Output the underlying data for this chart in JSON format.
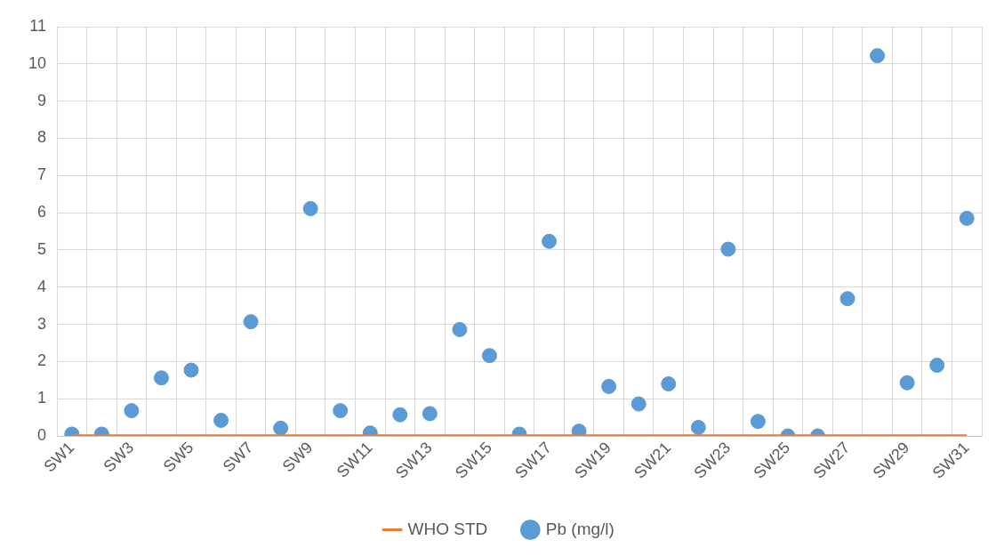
{
  "chart_data": {
    "type": "scatter",
    "categories": [
      "SW1",
      null,
      "SW3",
      null,
      "SW5",
      null,
      "SW7",
      null,
      "SW9",
      null,
      "SW11",
      null,
      "SW13",
      null,
      "SW15",
      null,
      "SW17",
      null,
      "SW19",
      null,
      "SW21",
      null,
      "SW23",
      null,
      "SW25",
      null,
      "SW27",
      null,
      "SW29",
      null,
      "SW31"
    ],
    "series": [
      {
        "name": "WHO STD",
        "type": "line",
        "color": "#ed7d31",
        "marker": "none",
        "values": [
          0.01,
          0.01,
          0.01,
          0.01,
          0.01,
          0.01,
          0.01,
          0.01,
          0.01,
          0.01,
          0.01,
          0.01,
          0.01,
          0.01,
          0.01,
          0.01,
          0.01,
          0.01,
          0.01,
          0.01,
          0.01,
          0.01,
          0.01,
          0.01,
          0.01,
          0.01,
          0.01,
          0.01,
          0.01,
          0.01,
          0.01
        ]
      },
      {
        "name": "Pb (mg/l)",
        "color": "#5b9bd5",
        "marker": "circle",
        "values": [
          0.05,
          0.05,
          0.68,
          1.56,
          1.77,
          0.42,
          3.07,
          0.21,
          6.11,
          0.68,
          0.08,
          0.57,
          0.6,
          2.86,
          2.16,
          0.05,
          5.23,
          0.13,
          1.33,
          0.86,
          1.4,
          0.23,
          5.02,
          0.39,
          0,
          0,
          3.69,
          10.22,
          1.43,
          1.9,
          5.85
        ]
      }
    ],
    "ylim": [
      0,
      11
    ],
    "yticks": [
      0,
      1,
      2,
      3,
      4,
      5,
      6,
      7,
      8,
      9,
      10,
      11
    ],
    "grid": true,
    "legend": "bottom"
  }
}
